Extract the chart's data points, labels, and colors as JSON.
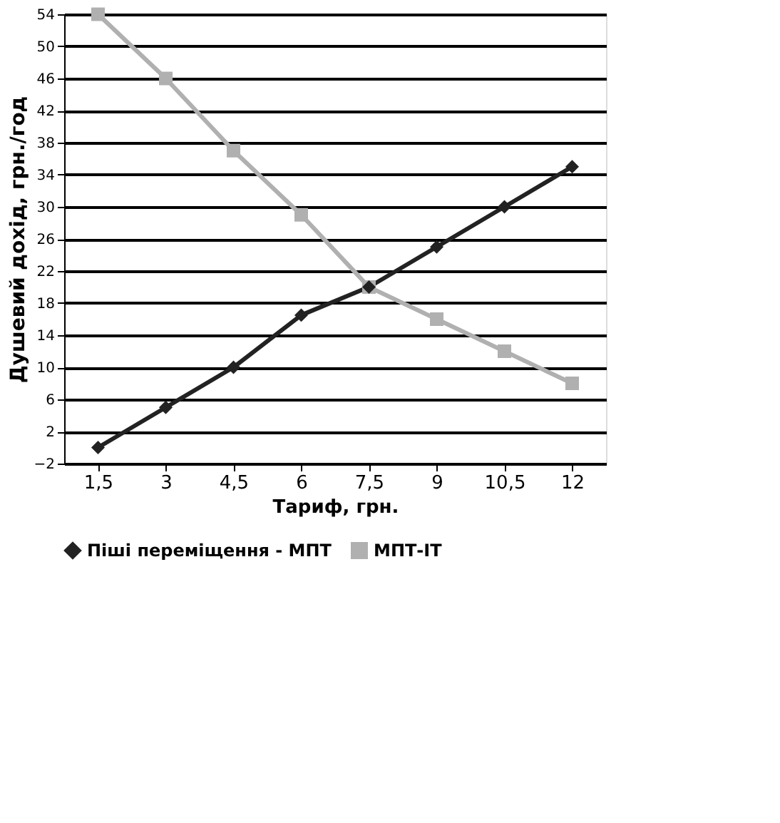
{
  "chart_data": {
    "type": "line",
    "xlabel": "Тариф, грн.",
    "ylabel": "Душевий дохід, грн./год",
    "categories": [
      "1,5",
      "3",
      "4,5",
      "6",
      "7,5",
      "9",
      "10,5",
      "12"
    ],
    "series": [
      {
        "name": "Піші переміщення - МПТ",
        "color": "#222222",
        "marker": "diamond",
        "values": [
          0,
          5,
          10,
          16.5,
          20,
          25,
          30,
          35
        ]
      },
      {
        "name": "МПТ-ІТ",
        "color": "#b0b0b0",
        "marker": "square",
        "values": [
          54,
          46,
          37,
          29,
          20,
          16,
          12,
          8
        ]
      }
    ],
    "ylim": [
      -2,
      54
    ],
    "yticks": [
      -2,
      2,
      6,
      10,
      14,
      18,
      22,
      26,
      30,
      34,
      38,
      42,
      46,
      50,
      54
    ],
    "grid": "y",
    "legend": "bottom",
    "line_style": "solid"
  }
}
